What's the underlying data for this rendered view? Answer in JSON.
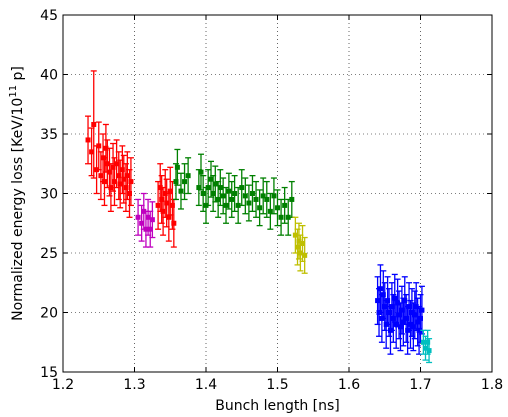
{
  "chart_data": {
    "type": "scatter",
    "xlabel": "Bunch length [ns]",
    "ylabel_main": "Normalized energy loss [KeV/10",
    "ylabel_sup": "11",
    "ylabel_tail": " p]",
    "xlim": [
      1.2,
      1.8
    ],
    "ylim": [
      15,
      45
    ],
    "xticks": [
      "1.2",
      "1.3",
      "1.4",
      "1.5",
      "1.6",
      "1.7",
      "1.8"
    ],
    "yticks": [
      "15",
      "20",
      "25",
      "30",
      "35",
      "40",
      "45"
    ],
    "grid": true,
    "series": [
      {
        "color": "#ff0000",
        "points": [
          [
            1.235,
            34.5,
            2.0
          ],
          [
            1.24,
            33.5,
            2.0
          ],
          [
            1.243,
            35.8,
            4.5
          ],
          [
            1.247,
            32.0,
            2.0
          ],
          [
            1.25,
            34.0,
            2.0
          ],
          [
            1.253,
            31.5,
            2.0
          ],
          [
            1.256,
            33.0,
            2.0
          ],
          [
            1.258,
            31.0,
            2.0
          ],
          [
            1.26,
            33.8,
            2.0
          ],
          [
            1.262,
            32.5,
            2.0
          ],
          [
            1.265,
            31.8,
            2.0
          ],
          [
            1.267,
            30.5,
            2.0
          ],
          [
            1.27,
            32.2,
            2.0
          ],
          [
            1.272,
            31.0,
            2.0
          ],
          [
            1.275,
            32.5,
            2.0
          ],
          [
            1.278,
            31.5,
            2.0
          ],
          [
            1.28,
            30.8,
            2.0
          ],
          [
            1.283,
            32.0,
            2.0
          ],
          [
            1.285,
            31.2,
            2.0
          ],
          [
            1.288,
            30.5,
            2.0
          ],
          [
            1.29,
            31.5,
            2.0
          ],
          [
            1.293,
            30.0,
            2.0
          ],
          [
            1.295,
            31.0,
            2.0
          ],
          [
            1.333,
            29.0,
            2.0
          ],
          [
            1.336,
            30.5,
            2.0
          ],
          [
            1.338,
            29.5,
            2.0
          ],
          [
            1.34,
            28.5,
            2.0
          ],
          [
            1.343,
            30.0,
            2.0
          ],
          [
            1.345,
            29.2,
            2.0
          ],
          [
            1.348,
            28.0,
            2.0
          ],
          [
            1.35,
            30.2,
            2.0
          ],
          [
            1.353,
            29.0,
            2.0
          ],
          [
            1.355,
            27.5,
            2.0
          ]
        ]
      },
      {
        "color": "#bf00bf",
        "points": [
          [
            1.305,
            28.0,
            1.5
          ],
          [
            1.31,
            27.5,
            1.5
          ],
          [
            1.313,
            28.5,
            1.5
          ],
          [
            1.316,
            27.0,
            1.5
          ],
          [
            1.319,
            28.0,
            1.5
          ],
          [
            1.322,
            27.0,
            1.5
          ],
          [
            1.325,
            27.8,
            1.5
          ]
        ]
      },
      {
        "color": "#008000",
        "points": [
          [
            1.358,
            31.0,
            1.5
          ],
          [
            1.36,
            32.2,
            1.5
          ],
          [
            1.365,
            30.2,
            1.5
          ],
          [
            1.37,
            31.0,
            1.5
          ],
          [
            1.375,
            31.5,
            1.5
          ],
          [
            1.39,
            30.5,
            1.5
          ],
          [
            1.393,
            31.8,
            1.5
          ],
          [
            1.396,
            30.0,
            1.5
          ],
          [
            1.4,
            29.0,
            1.5
          ],
          [
            1.403,
            30.5,
            1.5
          ],
          [
            1.407,
            31.2,
            1.5
          ],
          [
            1.41,
            30.0,
            1.5
          ],
          [
            1.413,
            30.8,
            1.5
          ],
          [
            1.417,
            29.5,
            1.5
          ],
          [
            1.42,
            30.5,
            1.5
          ],
          [
            1.424,
            29.8,
            1.5
          ],
          [
            1.428,
            29.0,
            1.5
          ],
          [
            1.432,
            30.2,
            1.5
          ],
          [
            1.436,
            29.5,
            1.5
          ],
          [
            1.44,
            30.0,
            1.5
          ],
          [
            1.445,
            29.0,
            1.5
          ],
          [
            1.45,
            30.5,
            1.5
          ],
          [
            1.455,
            29.8,
            1.5
          ],
          [
            1.46,
            29.2,
            1.5
          ],
          [
            1.465,
            30.0,
            1.5
          ],
          [
            1.47,
            29.5,
            1.5
          ],
          [
            1.475,
            28.8,
            1.5
          ],
          [
            1.48,
            29.8,
            1.5
          ],
          [
            1.485,
            29.5,
            1.5
          ],
          [
            1.49,
            28.5,
            1.5
          ],
          [
            1.495,
            29.8,
            1.5
          ],
          [
            1.5,
            28.8,
            1.5
          ],
          [
            1.505,
            28.0,
            1.5
          ],
          [
            1.51,
            29.0,
            1.5
          ],
          [
            1.515,
            28.0,
            1.5
          ],
          [
            1.52,
            29.5,
            1.5
          ]
        ]
      },
      {
        "color": "#bfbf00",
        "points": [
          [
            1.525,
            26.5,
            1.5
          ],
          [
            1.528,
            25.5,
            1.5
          ],
          [
            1.53,
            26.0,
            1.5
          ],
          [
            1.532,
            25.0,
            1.5
          ],
          [
            1.535,
            25.8,
            1.5
          ],
          [
            1.538,
            24.8,
            1.5
          ]
        ]
      },
      {
        "color": "#0000ff",
        "points": [
          [
            1.64,
            21.0,
            2.0
          ],
          [
            1.642,
            20.0,
            2.0
          ],
          [
            1.644,
            22.0,
            2.0
          ],
          [
            1.646,
            19.5,
            2.0
          ],
          [
            1.648,
            21.5,
            2.0
          ],
          [
            1.65,
            20.5,
            2.0
          ],
          [
            1.652,
            19.0,
            2.0
          ],
          [
            1.654,
            21.0,
            2.0
          ],
          [
            1.656,
            20.0,
            2.0
          ],
          [
            1.658,
            18.5,
            2.0
          ],
          [
            1.66,
            20.5,
            2.0
          ],
          [
            1.662,
            19.5,
            2.0
          ],
          [
            1.664,
            21.2,
            2.0
          ],
          [
            1.666,
            19.0,
            2.0
          ],
          [
            1.668,
            20.8,
            2.0
          ],
          [
            1.67,
            19.8,
            2.0
          ],
          [
            1.672,
            18.8,
            2.0
          ],
          [
            1.674,
            20.2,
            2.0
          ],
          [
            1.676,
            19.2,
            2.0
          ],
          [
            1.678,
            21.0,
            2.0
          ],
          [
            1.68,
            19.5,
            2.0
          ],
          [
            1.682,
            18.5,
            2.0
          ],
          [
            1.684,
            20.5,
            2.0
          ],
          [
            1.686,
            19.0,
            2.0
          ],
          [
            1.688,
            20.0,
            2.0
          ],
          [
            1.69,
            18.8,
            2.0
          ],
          [
            1.692,
            19.8,
            2.0
          ],
          [
            1.694,
            20.5,
            2.0
          ],
          [
            1.696,
            19.2,
            2.0
          ],
          [
            1.698,
            18.5,
            2.0
          ],
          [
            1.7,
            19.5,
            2.0
          ],
          [
            1.702,
            20.2,
            2.0
          ]
        ]
      },
      {
        "color": "#00bfbf",
        "points": [
          [
            1.704,
            17.5,
            1.0
          ],
          [
            1.707,
            17.0,
            1.0
          ],
          [
            1.71,
            17.5,
            1.0
          ],
          [
            1.712,
            16.8,
            1.0
          ]
        ]
      }
    ]
  }
}
